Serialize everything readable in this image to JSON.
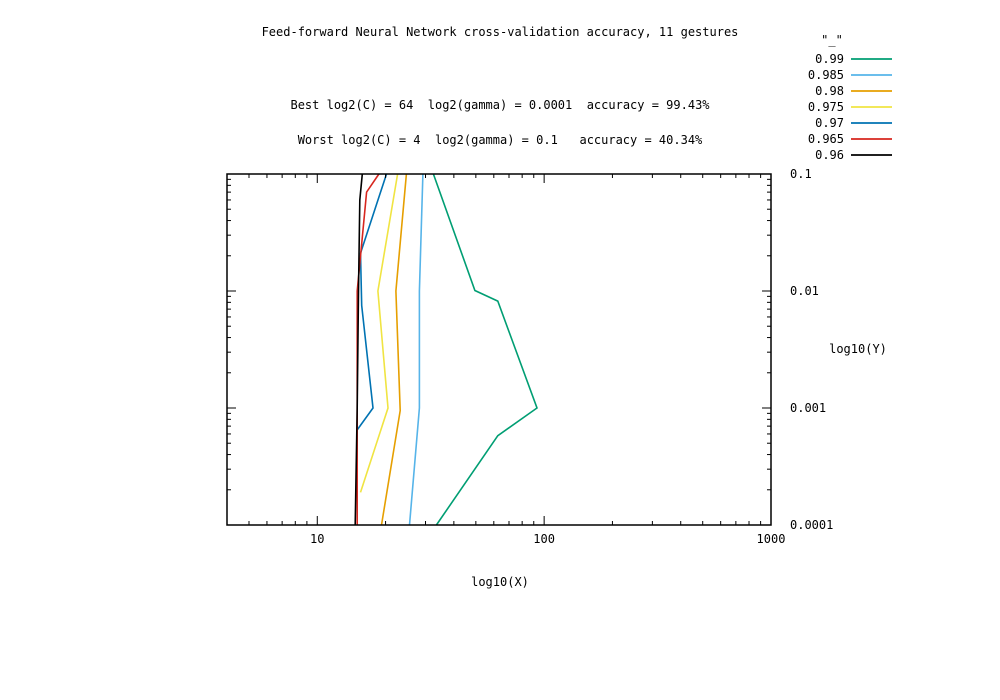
{
  "chart_data": {
    "type": "line",
    "title": "Feed-forward Neural Network cross-validation accuracy, 11 gestures",
    "annotations": [
      "Best log2(C) = 64  log2(gamma) = 0.0001  accuracy = 99.43%",
      "Worst log2(C) = 4  log2(gamma) = 0.1   accuracy = 40.34%"
    ],
    "xlabel": "log10(X)",
    "ylabel": "log10(Y)",
    "x_scale": "log",
    "y_scale": "log",
    "xlim": [
      4,
      1000
    ],
    "ylim": [
      0.0001,
      0.1
    ],
    "x_ticks": [
      {
        "value": 10,
        "label": "10"
      },
      {
        "value": 100,
        "label": "100"
      },
      {
        "value": 1000,
        "label": "1000"
      }
    ],
    "y_ticks": [
      {
        "value": 0.1,
        "label": "0.1"
      },
      {
        "value": 0.01,
        "label": "0.01"
      },
      {
        "value": 0.001,
        "label": "0.001"
      },
      {
        "value": 0.0001,
        "label": "0.0001"
      }
    ],
    "grid": false,
    "legend_title": "\"_\"",
    "legend_position": "top-right outside",
    "series": [
      {
        "name": "0.99",
        "color": "#009e73",
        "points": [
          [
            33.5,
            0.0001
          ],
          [
            62.5,
            0.00058
          ],
          [
            93,
            0.001
          ],
          [
            62.5,
            0.0082
          ],
          [
            49.5,
            0.0101
          ],
          [
            32.5,
            0.1
          ]
        ]
      },
      {
        "name": "0.985",
        "color": "#56b4e9",
        "points": [
          [
            25.5,
            0.0001
          ],
          [
            28.2,
            0.001
          ],
          [
            28.2,
            0.01
          ],
          [
            29.2,
            0.1
          ]
        ]
      },
      {
        "name": "0.98",
        "color": "#e69f00",
        "points": [
          [
            19.2,
            0.0001
          ],
          [
            23.2,
            0.00095
          ],
          [
            22.2,
            0.01
          ],
          [
            24.7,
            0.1
          ]
        ]
      },
      {
        "name": "0.975",
        "color": "#f0e442",
        "points": [
          [
            15.5,
            0.00019
          ],
          [
            20.5,
            0.001
          ],
          [
            18.5,
            0.01
          ],
          [
            22.6,
            0.1
          ]
        ]
      },
      {
        "name": "0.97",
        "color": "#0072b2",
        "points": [
          [
            15.0,
            0.00065
          ],
          [
            17.6,
            0.001
          ],
          [
            15.7,
            0.0075
          ],
          [
            15.5,
            0.021
          ],
          [
            20.2,
            0.1
          ]
        ]
      },
      {
        "name": "0.965",
        "color": "#d7261e",
        "points": [
          [
            15.0,
            0.0001
          ],
          [
            15.0,
            0.001
          ],
          [
            15.0,
            0.01
          ],
          [
            16.5,
            0.07
          ],
          [
            18.7,
            0.1
          ]
        ]
      },
      {
        "name": "0.96",
        "color": "#000000",
        "points": [
          [
            14.7,
            0.0001
          ],
          [
            15.0,
            0.001
          ],
          [
            15.2,
            0.01
          ],
          [
            15.4,
            0.06
          ],
          [
            15.8,
            0.1
          ]
        ]
      }
    ]
  }
}
